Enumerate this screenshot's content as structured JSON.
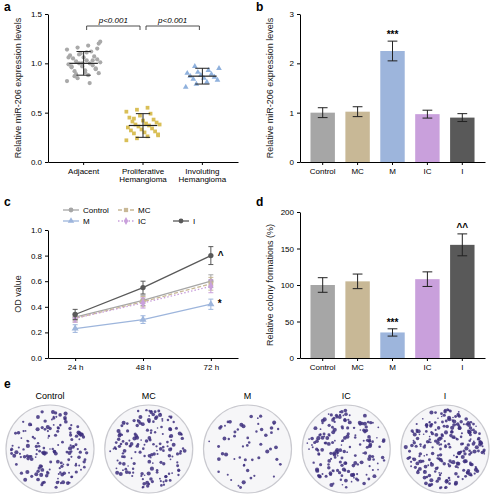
{
  "chart_data": [
    {
      "panel": "a",
      "type": "strip",
      "y_label": "Relative miR-206 expression levels",
      "ylim": [
        0,
        1.5
      ],
      "yticks": [
        {
          "value": 0,
          "label": "0.0"
        },
        {
          "value": 0.5,
          "label": "0.5"
        },
        {
          "value": 1,
          "label": "1.0"
        },
        {
          "value": 1.5,
          "label": "1.5"
        }
      ],
      "series": [
        {
          "name": "Adjacent",
          "color": "#a9a9a9",
          "marker": "circle",
          "values": [
            0.82,
            0.85,
            0.88,
            0.9,
            0.92,
            0.93,
            0.95,
            0.96,
            0.97,
            0.98,
            0.99,
            1.0,
            1.0,
            1.01,
            1.02,
            1.03,
            1.04,
            1.05,
            1.06,
            1.07,
            1.08,
            1.1,
            1.12,
            1.14,
            1.16,
            1.18,
            1.2,
            0.87,
            0.91,
            0.94,
            0.97,
            1.0,
            1.03,
            1.06,
            1.09,
            0.8,
            1.22,
            0.89,
            1.11,
            1.15
          ],
          "mean": 1.0,
          "sd": 0.12
        },
        {
          "name": "Proliferative Hemangioma",
          "color": "#d9bf57",
          "marker": "square",
          "values": [
            0.22,
            0.24,
            0.26,
            0.28,
            0.29,
            0.3,
            0.31,
            0.32,
            0.33,
            0.34,
            0.35,
            0.36,
            0.37,
            0.38,
            0.38,
            0.39,
            0.4,
            0.41,
            0.42,
            0.43,
            0.45,
            0.47,
            0.49,
            0.51,
            0.53,
            0.55,
            0.27,
            0.44
          ],
          "mean": 0.37,
          "sd": 0.12
        },
        {
          "name": "Involuting Hemangioma",
          "color": "#8fb1dd",
          "marker": "triangle",
          "values": [
            0.76,
            0.79,
            0.81,
            0.83,
            0.84,
            0.85,
            0.86,
            0.87,
            0.88,
            0.89,
            0.9,
            0.91,
            0.93,
            0.95,
            0.97
          ],
          "mean": 0.87,
          "sd": 0.08
        }
      ],
      "comparisons": [
        {
          "from": "Adjacent",
          "to": "Proliferative Hemangioma",
          "text": "p<0.001"
        },
        {
          "from": "Proliferative Hemangioma",
          "to": "Involuting Hemangioma",
          "text": "p<0.001"
        }
      ]
    },
    {
      "panel": "b",
      "type": "bar",
      "y_label": "Relative miR-206 expression levels",
      "categories": [
        "Control",
        "MC",
        "M",
        "IC",
        "I"
      ],
      "values": [
        1.0,
        1.02,
        2.25,
        0.97,
        0.9
      ],
      "errors": [
        0.1,
        0.1,
        0.2,
        0.08,
        0.08
      ],
      "colors": [
        "#a6a6a6",
        "#c8b896",
        "#9db5dc",
        "#c9a0dc",
        "#595959"
      ],
      "ylim": [
        0,
        3
      ],
      "yticks": [
        0,
        1,
        2,
        3
      ],
      "annotations": [
        {
          "text": "***",
          "category": "M"
        }
      ]
    },
    {
      "panel": "c",
      "type": "line",
      "y_label": "OD value",
      "categories": [
        "24 h",
        "48 h",
        "72 h"
      ],
      "ylim": [
        0,
        1
      ],
      "yticks": [
        {
          "value": 0,
          "label": "0.0"
        },
        {
          "value": 0.2,
          "label": "0.2"
        },
        {
          "value": 0.4,
          "label": "0.4"
        },
        {
          "value": 0.6,
          "label": "0.6"
        },
        {
          "value": 0.8,
          "label": "0.8"
        },
        {
          "value": 1,
          "label": "1.0"
        }
      ],
      "legend": "top",
      "series": [
        {
          "name": "Control",
          "color": "#a6a6a6",
          "marker": "circle",
          "line_style": "solid",
          "values": [
            0.32,
            0.45,
            0.6
          ],
          "errors": [
            0.03,
            0.04,
            0.05
          ]
        },
        {
          "name": "MC",
          "color": "#c8b896",
          "marker": "square",
          "line_style": "dashed",
          "values": [
            0.31,
            0.44,
            0.58
          ],
          "errors": [
            0.03,
            0.04,
            0.05
          ]
        },
        {
          "name": "M",
          "color": "#9db5dc",
          "marker": "triangle",
          "line_style": "solid",
          "values": [
            0.23,
            0.3,
            0.42
          ],
          "errors": [
            0.03,
            0.03,
            0.04
          ]
        },
        {
          "name": "IC",
          "color": "#c9a0dc",
          "marker": "diamond",
          "line_style": "dotted",
          "values": [
            0.31,
            0.43,
            0.56
          ],
          "errors": [
            0.03,
            0.04,
            0.05
          ]
        },
        {
          "name": "I",
          "color": "#595959",
          "marker": "circle",
          "line_style": "solid",
          "values": [
            0.34,
            0.55,
            0.8
          ],
          "errors": [
            0.04,
            0.05,
            0.07
          ]
        }
      ],
      "annotations": [
        {
          "text": "^",
          "series": "I",
          "category": "72 h"
        },
        {
          "text": "*",
          "series": "M",
          "category": "72 h"
        }
      ]
    },
    {
      "panel": "d",
      "type": "bar",
      "y_label": "Relative colony formations (%)",
      "categories": [
        "Control",
        "MC",
        "M",
        "IC",
        "I"
      ],
      "values": [
        100,
        105,
        35,
        108,
        155
      ],
      "errors": [
        10,
        10,
        5,
        10,
        15
      ],
      "colors": [
        "#a6a6a6",
        "#c8b896",
        "#9db5dc",
        "#c9a0dc",
        "#595959"
      ],
      "ylim": [
        0,
        200
      ],
      "yticks": [
        0,
        50,
        100,
        150,
        200
      ],
      "annotations": [
        {
          "text": "***",
          "category": "M"
        },
        {
          "text": "^^",
          "category": "I"
        }
      ]
    }
  ],
  "colony_images": {
    "panel": "e",
    "labels": [
      "Control",
      "MC",
      "M",
      "IC",
      "I"
    ]
  }
}
